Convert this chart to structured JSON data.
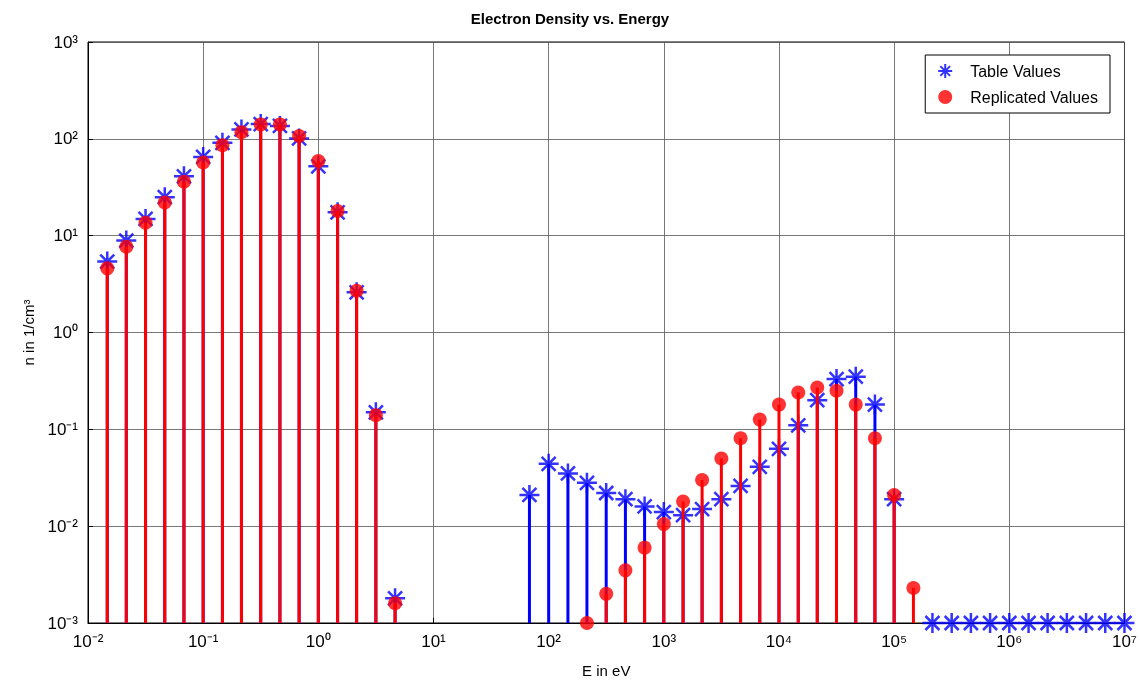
{
  "chart_data": {
    "type": "lollipop",
    "title": "Electron Density vs. Energy",
    "xlabel": "E in eV",
    "ylabel": "n in 1/cm³",
    "log": "xy",
    "grid": true,
    "legend": "top right",
    "line_style": "solid",
    "xlim": [
      0.01,
      10000000
    ],
    "ylim": [
      0.001,
      1000
    ],
    "xticks": [
      {
        "value": 0.01,
        "label": "10⁻²"
      },
      {
        "value": 0.1,
        "label": "10⁻¹"
      },
      {
        "value": 1,
        "label": "10⁰"
      },
      {
        "value": 10,
        "label": "10¹"
      },
      {
        "value": 100,
        "label": "10²"
      },
      {
        "value": 1000,
        "label": "10³"
      },
      {
        "value": 10000,
        "label": "10⁴"
      },
      {
        "value": 100000,
        "label": "10⁵"
      },
      {
        "value": 1000000,
        "label": "10⁶"
      },
      {
        "value": 10000000,
        "label": "10⁷"
      }
    ],
    "yticks": [
      {
        "value": 0.001,
        "label": "10⁻³"
      },
      {
        "value": 0.01,
        "label": "10⁻²"
      },
      {
        "value": 0.1,
        "label": "10⁻¹"
      },
      {
        "value": 1,
        "label": "10⁰"
      },
      {
        "value": 10,
        "label": "10¹"
      },
      {
        "value": 100,
        "label": "10²"
      },
      {
        "value": 1000,
        "label": "10³"
      }
    ],
    "series": [
      {
        "name": "Table Values",
        "color": "#0000ff",
        "marker": "cross",
        "x": [
          0.0147,
          0.0215,
          0.0316,
          0.0464,
          0.0681,
          0.1,
          0.147,
          0.215,
          0.316,
          0.464,
          0.681,
          1,
          1.47,
          2.15,
          3.16,
          4.64,
          68.1,
          100,
          147,
          215,
          316,
          464,
          681,
          1000,
          1470,
          2150,
          3160,
          4640,
          6810,
          10000,
          14700,
          21500,
          31600,
          46400,
          68100,
          100000,
          215000,
          316000,
          464000,
          681000,
          1000000,
          1470000,
          2150000,
          3160000,
          4640000,
          6810000,
          10000000
        ],
        "values": [
          5.4,
          8.9,
          14.9,
          25,
          41,
          65,
          91,
          125,
          142,
          136,
          101,
          52,
          17.4,
          2.6,
          0.15,
          0.0018,
          0.021,
          0.044,
          0.035,
          0.028,
          0.022,
          0.019,
          0.016,
          0.014,
          0.013,
          0.015,
          0.019,
          0.026,
          0.041,
          0.063,
          0.11,
          0.2,
          0.33,
          0.35,
          0.18,
          0.019,
          0.001,
          0.001,
          0.001,
          0.001,
          0.001,
          0.001,
          0.001,
          0.001,
          0.001,
          0.001,
          0.001
        ]
      },
      {
        "name": "Replicated Values",
        "color": "#ff0000",
        "marker": "circle",
        "x": [
          0.0147,
          0.0215,
          0.0316,
          0.0464,
          0.0681,
          0.1,
          0.147,
          0.215,
          0.316,
          0.464,
          0.681,
          1,
          1.47,
          2.15,
          3.16,
          4.64,
          215,
          316,
          464,
          681,
          1000,
          1470,
          2150,
          3160,
          4640,
          6810,
          10000,
          14700,
          21500,
          31600,
          46400,
          68100,
          100000,
          147000
        ],
        "values": [
          4.6,
          7.7,
          13.6,
          22,
          36,
          57,
          86,
          117,
          141,
          141,
          107,
          59,
          18,
          2.7,
          0.14,
          0.0016,
          0.001,
          0.002,
          0.0035,
          0.006,
          0.0105,
          0.018,
          0.03,
          0.05,
          0.081,
          0.126,
          0.18,
          0.24,
          0.27,
          0.25,
          0.18,
          0.081,
          0.021,
          0.0023
        ]
      }
    ]
  }
}
